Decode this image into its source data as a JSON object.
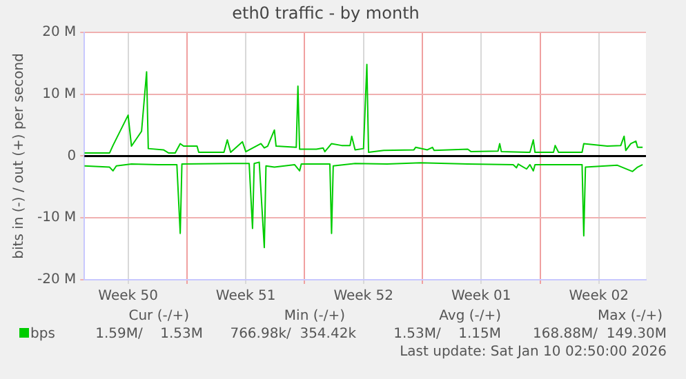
{
  "chart_data": {
    "type": "line",
    "title": "eth0 traffic - by month",
    "ylabel": "bits in (-) / out (+) per second",
    "xlim": [
      "2025-12-07T21:36",
      "2026-01-10T07:12"
    ],
    "xticks": [
      {
        "value": "2025-12-10T12:00",
        "label": "Week 50"
      },
      {
        "value": "2025-12-14T00:00",
        "label": null
      },
      {
        "value": "2025-12-17T12:00",
        "label": "Week 51"
      },
      {
        "value": "2025-12-21T00:00",
        "label": null
      },
      {
        "value": "2025-12-24T12:00",
        "label": "Week 52"
      },
      {
        "value": "2025-12-28T00:00",
        "label": null
      },
      {
        "value": "2025-12-31T12:00",
        "label": "Week 01"
      },
      {
        "value": "2026-01-04T00:00",
        "label": null
      },
      {
        "value": "2026-01-07T12:00",
        "label": "Week 02"
      }
    ],
    "ylim": [
      -20,
      20
    ],
    "yticks": [
      {
        "value": -20,
        "label": "-20 M"
      },
      {
        "value": -10,
        "label": "-10 M"
      },
      {
        "value": 0,
        "label": "0"
      },
      {
        "value": 10,
        "label": "10 M"
      },
      {
        "value": 20,
        "label": "20 M"
      }
    ],
    "grid": true,
    "legend": "bottom",
    "marker": "none",
    "line_style": "solid",
    "ref_lines": [
      {
        "axis": "y",
        "value": 0,
        "label": null,
        "color": "#000000"
      }
    ],
    "series": [
      {
        "name": "bps",
        "color": "#00cc00",
        "x": [
          "2025-12-07T21:36",
          "2025-12-09T09:36",
          "2025-12-09T14:24",
          "2025-12-10T12:00",
          "2025-12-10T16:48",
          "2025-12-11T07:12",
          "2025-12-11T14:24",
          "2025-12-11T16:48",
          "2025-12-12T14:24",
          "2025-12-12T21:36",
          "2025-12-13T07:12",
          "2025-12-13T14:24",
          "2025-12-13T19:12",
          "2025-12-14T14:24",
          "2025-12-14T16:48",
          "2025-12-16T04:48",
          "2025-12-16T09:36",
          "2025-12-16T14:24",
          "2025-12-17T07:12",
          "2025-12-17T12:00",
          "2025-12-18T09:36",
          "2025-12-18T14:24",
          "2025-12-18T19:12",
          "2025-12-19T04:48",
          "2025-12-19T07:12",
          "2025-12-20T12:00",
          "2025-12-20T14:24",
          "2025-12-20T16:48",
          "2025-12-21T16:48",
          "2025-12-22T02:24",
          "2025-12-22T04:48",
          "2025-12-22T14:24",
          "2025-12-23T04:48",
          "2025-12-23T16:48",
          "2025-12-23T19:12",
          "2025-12-24T00:00",
          "2025-12-24T12:00",
          "2025-12-24T16:48",
          "2025-12-24T19:12",
          "2025-12-25T16:48",
          "2025-12-27T12:00",
          "2025-12-27T14:24",
          "2025-12-28T07:12",
          "2025-12-28T14:24",
          "2025-12-28T16:48",
          "2025-12-30T16:48",
          "2025-12-30T21:36",
          "2026-01-01T12:00",
          "2026-01-01T14:24",
          "2026-01-01T16:48",
          "2026-01-03T09:36",
          "2026-01-03T14:24",
          "2026-01-03T16:48",
          "2026-01-04T19:12",
          "2026-01-04T21:36",
          "2026-01-05T02:24",
          "2026-01-06T12:00",
          "2026-01-06T14:24",
          "2026-01-08T00:00",
          "2026-01-08T19:12",
          "2026-01-09T00:00",
          "2026-01-09T02:24",
          "2026-01-09T09:36",
          "2026-01-09T16:48",
          "2026-01-09T19:12",
          "2026-01-10T02:24"
        ],
        "values": [
          0.5,
          0.5,
          1.7,
          6.6,
          1.6,
          4.0,
          13.6,
          1.2,
          1.0,
          0.5,
          0.5,
          2.0,
          1.6,
          1.6,
          0.6,
          0.6,
          2.6,
          0.6,
          2.3,
          0.7,
          2.0,
          1.3,
          1.6,
          4.2,
          1.6,
          1.4,
          11.3,
          1.1,
          1.1,
          1.3,
          0.7,
          2.0,
          1.7,
          1.7,
          3.2,
          1.0,
          1.2,
          14.8,
          0.6,
          0.9,
          1.0,
          1.4,
          1.0,
          1.4,
          0.9,
          1.1,
          0.7,
          0.8,
          2.0,
          0.7,
          0.6,
          2.6,
          0.6,
          0.6,
          1.7,
          0.6,
          0.6,
          2.0,
          1.6,
          1.7,
          3.2,
          0.9,
          2.0,
          2.4,
          1.4,
          1.4
        ]
      },
      {
        "color": "#00cc00",
        "x": [
          "2025-12-07T21:36",
          "2025-12-09T09:36",
          "2025-12-09T14:24",
          "2025-12-09T19:12",
          "2025-12-10T16:48",
          "2025-12-12T07:12",
          "2025-12-13T09:36",
          "2025-12-13T14:24",
          "2025-12-13T16:48",
          "2025-12-16T16:48",
          "2025-12-17T16:48",
          "2025-12-17T21:36",
          "2025-12-18T00:00",
          "2025-12-18T07:12",
          "2025-12-18T14:24",
          "2025-12-18T16:48",
          "2025-12-19T04:48",
          "2025-12-20T09:36",
          "2025-12-20T16:48",
          "2025-12-20T19:12",
          "2025-12-22T12:00",
          "2025-12-22T14:24",
          "2025-12-22T16:48",
          "2025-12-24T00:00",
          "2025-12-25T21:36",
          "2025-12-27T21:36",
          "2025-12-30T16:48",
          "2026-01-02T09:36",
          "2026-01-02T14:24",
          "2026-01-02T16:48",
          "2026-01-03T04:48",
          "2026-01-03T09:36",
          "2026-01-03T14:24",
          "2026-01-03T16:48",
          "2026-01-06T12:00",
          "2026-01-06T14:24",
          "2026-01-06T16:48",
          "2026-01-08T14:24",
          "2026-01-09T12:00",
          "2026-01-09T19:12",
          "2026-01-10T02:24"
        ],
        "values": [
          -1.6,
          -1.8,
          -2.4,
          -1.6,
          -1.3,
          -1.4,
          -1.4,
          -12.5,
          -1.3,
          -1.2,
          -1.2,
          -11.7,
          -1.2,
          -1.0,
          -14.8,
          -1.6,
          -1.8,
          -1.4,
          -2.4,
          -1.3,
          -1.3,
          -12.5,
          -1.6,
          -1.2,
          -1.3,
          -1.1,
          -1.3,
          -1.4,
          -1.9,
          -1.3,
          -2.1,
          -1.4,
          -2.4,
          -1.4,
          -1.4,
          -12.9,
          -1.8,
          -1.5,
          -2.5,
          -1.8,
          -1.4
        ]
      }
    ],
    "annotations": [
      "Cur (-/+)",
      "Min (-/+)",
      "Avg (-/+)",
      "Max (-/+)",
      "1.59M/    1.53M",
      "766.98k/  354.42k",
      "1.53M/    1.15M",
      "168.88M/  149.30M",
      "Last update: Sat Jan 10 02:50:00 2026"
    ]
  }
}
